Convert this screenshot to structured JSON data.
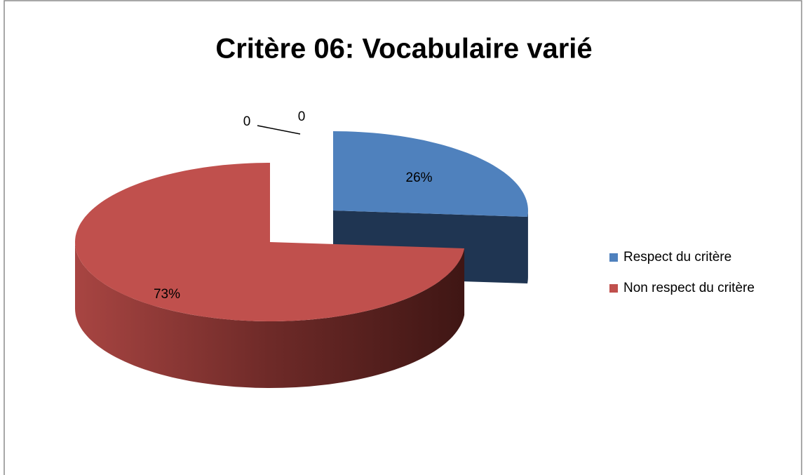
{
  "chart_data": {
    "type": "pie",
    "title": "Critère 06: Vocabulaire varié",
    "categories": [
      "Respect du critère",
      "Non respect du critère",
      null,
      null
    ],
    "values": [
      26,
      73,
      0,
      0
    ],
    "value_labels": [
      "26%",
      "73%",
      "0",
      "0"
    ],
    "colors": [
      "#4f81bd",
      "#c0504d",
      "#9bbb59",
      "#8064a2"
    ],
    "legend": "right"
  }
}
